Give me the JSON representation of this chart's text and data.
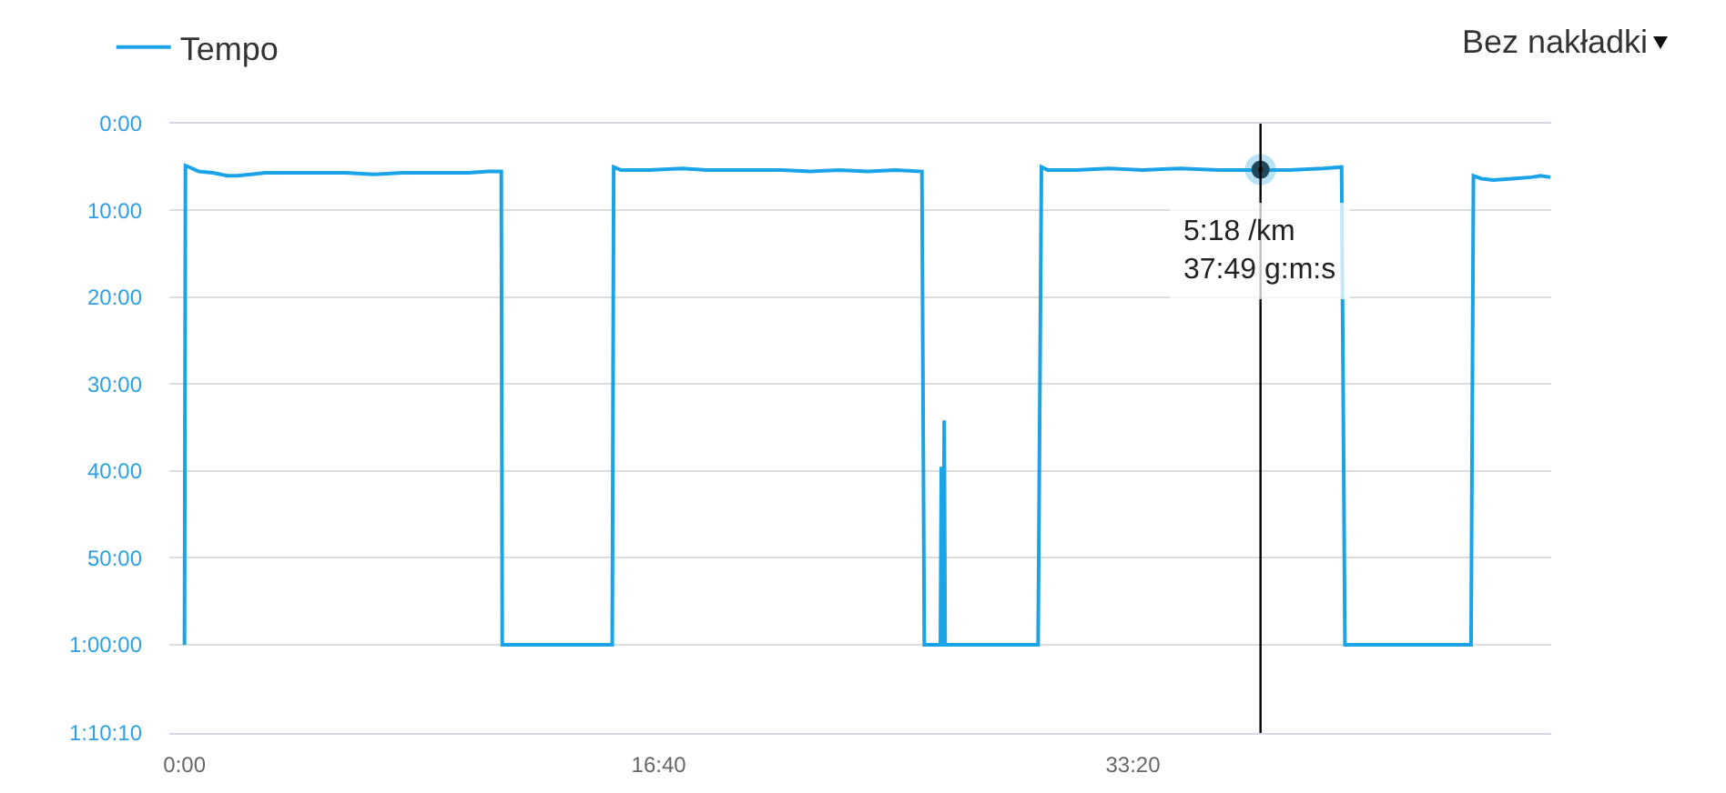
{
  "chart_data": {
    "type": "line",
    "x": [
      0,
      2,
      10,
      30,
      60,
      90,
      111,
      140,
      170,
      220,
      280,
      340,
      400,
      460,
      520,
      560,
      600,
      640,
      668,
      670,
      902,
      905,
      920,
      980,
      1050,
      1100,
      1150,
      1200,
      1260,
      1320,
      1380,
      1440,
      1500,
      1555,
      1560,
      1594,
      1596,
      1598,
      1600,
      1602,
      1604,
      1800,
      1807,
      1820,
      1880,
      1950,
      2020,
      2100,
      2180,
      2269,
      2330,
      2400,
      2440,
      2447,
      2713,
      2718,
      2735,
      2760,
      2800,
      2840,
      2860,
      2880
    ],
    "series": [
      {
        "name": "Tempo",
        "color": "#1ba3e8",
        "values": [
          3600,
          290,
          300,
          330,
          340,
          360,
          360,
          350,
          340,
          340,
          340,
          340,
          350,
          340,
          340,
          340,
          340,
          330,
          330,
          3600,
          3600,
          300,
          320,
          320,
          310,
          320,
          320,
          320,
          320,
          330,
          320,
          330,
          320,
          330,
          3600,
          3600,
          2370,
          3600,
          3600,
          2050,
          3600,
          3600,
          300,
          320,
          320,
          310,
          320,
          310,
          320,
          320,
          320,
          310,
          300,
          3600,
          3600,
          360,
          380,
          390,
          380,
          370,
          360,
          370
        ]
      },
      {
        "type": "scatter",
        "x": [
          2269
        ],
        "values": [
          318
        ],
        "color": "#222222",
        "marker": "circle"
      }
    ],
    "xlim": [
      -32,
      2882
    ],
    "xticks": [
      {
        "value": 0,
        "label": "0:00"
      },
      {
        "value": 1000,
        "label": "16:40"
      },
      {
        "value": 2000,
        "label": "33:20"
      }
    ],
    "ylim": [
      4210,
      0
    ],
    "yticks": [
      {
        "value": 0,
        "label": "0:00"
      },
      {
        "value": 600,
        "label": "10:00"
      },
      {
        "value": 1200,
        "label": "20:00"
      },
      {
        "value": 1800,
        "label": "30:00"
      },
      {
        "value": 2400,
        "label": "40:00"
      },
      {
        "value": 3000,
        "label": "50:00"
      },
      {
        "value": 3600,
        "label": "1:00:00"
      },
      {
        "value": 4210,
        "label": "1:10:10"
      }
    ],
    "grid": "y",
    "legend": "top left",
    "ref_lines": [
      {
        "axis": "x",
        "value": 2269,
        "color": "#000000"
      }
    ],
    "annotations": [
      {
        "text": "5:18 /km\n37:49 g:m:s",
        "x": 2269,
        "y": 318
      },
      "Bez nakładki"
    ]
  }
}
